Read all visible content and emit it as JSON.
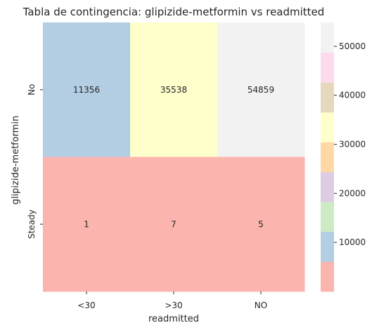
{
  "chart_data": {
    "type": "heatmap",
    "title": "Tabla de contingencia: glipizide-metformin vs readmitted",
    "xlabel": "readmitted",
    "ylabel": "glipizide-metformin",
    "x_categories": [
      "<30",
      ">30",
      "NO"
    ],
    "y_categories": [
      "No",
      "Steady"
    ],
    "values": [
      [
        11356,
        35538,
        54859
      ],
      [
        1,
        7,
        5
      ]
    ],
    "annotations": [
      [
        "11356",
        "35538",
        "54859"
      ],
      [
        "1",
        "7",
        "5"
      ]
    ],
    "colorbar": {
      "colormap": "Pastel1",
      "range": [
        1,
        54859
      ],
      "ticks": [
        10000,
        20000,
        30000,
        40000,
        50000
      ],
      "tick_labels": [
        "10000",
        "20000",
        "30000",
        "40000",
        "50000"
      ],
      "colors": [
        "#fbb4ae",
        "#b3cde3",
        "#ccebc5",
        "#decbe4",
        "#fed9a6",
        "#ffffcc",
        "#e5d8bd",
        "#fddaec",
        "#f2f2f2"
      ]
    }
  }
}
